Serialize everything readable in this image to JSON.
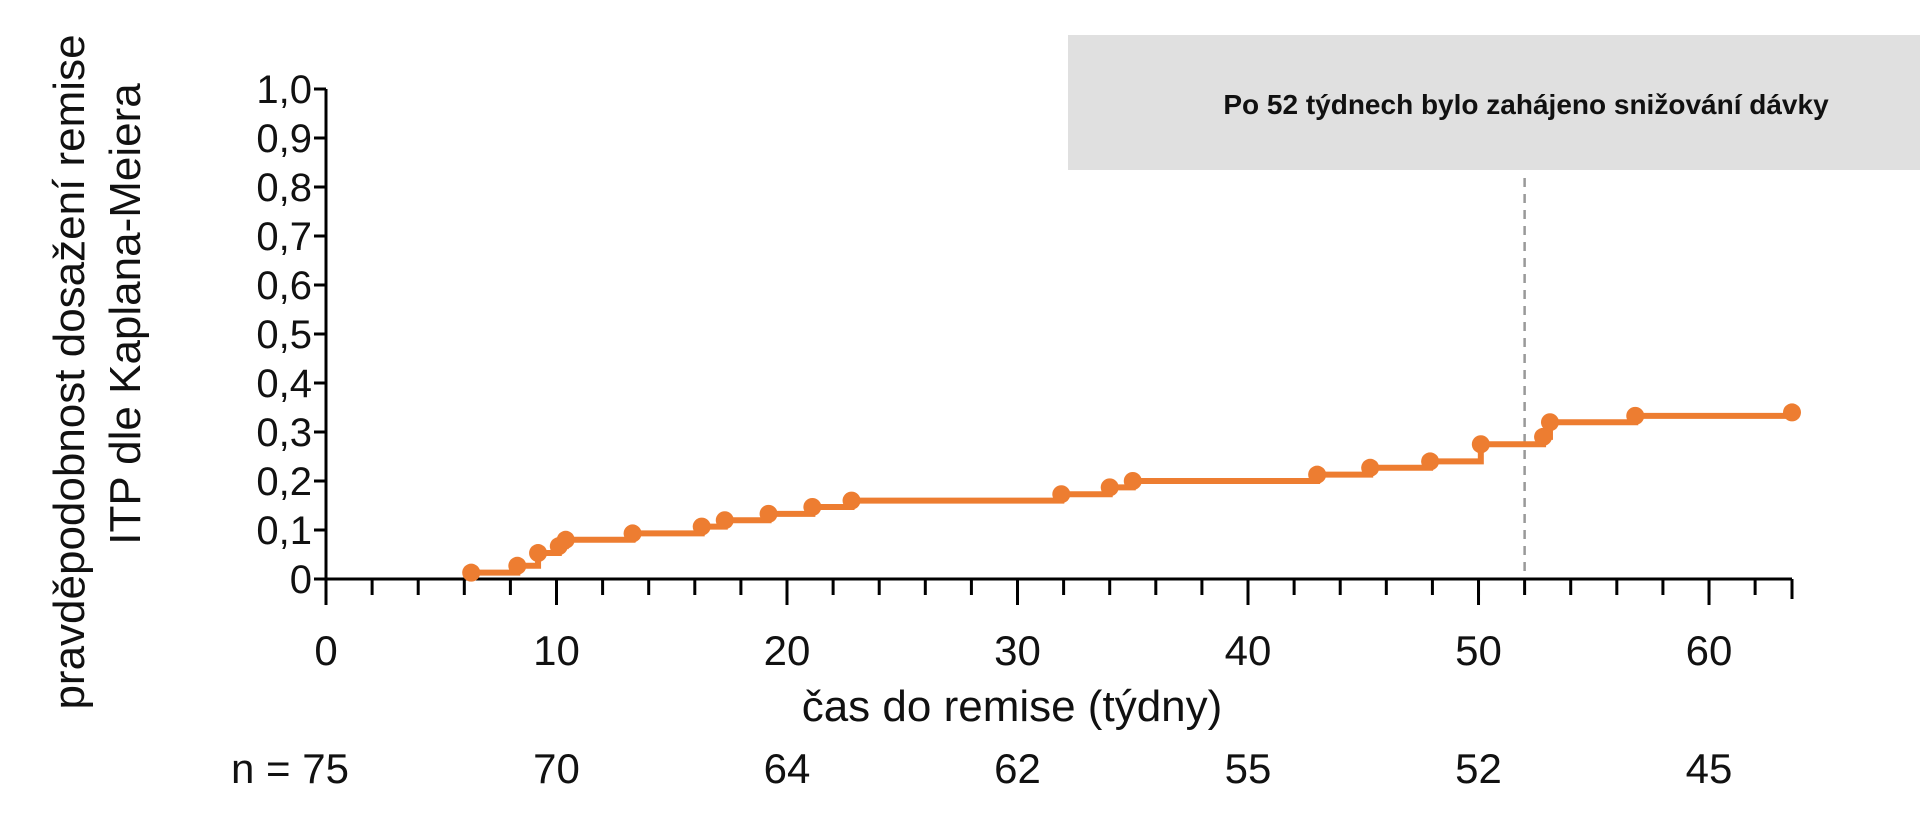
{
  "chart_data": {
    "type": "line",
    "subtype": "kaplan-meier-step",
    "title": "",
    "xlabel": "čas do remise (týdny)",
    "ylabel_lines": [
      "pravděpodobnost dosažení remise",
      "ITP dle Kaplana-Meiera"
    ],
    "xlim": [
      0,
      63.6
    ],
    "ylim": [
      0,
      1.0
    ],
    "x_ticks": [
      0,
      10,
      20,
      30,
      40,
      50,
      60
    ],
    "x_tick_labels": [
      "0",
      "10",
      "20",
      "30",
      "40",
      "50",
      "60"
    ],
    "x_minor_step": 2,
    "y_ticks": [
      0,
      0.1,
      0.2,
      0.3,
      0.4,
      0.5,
      0.6,
      0.7,
      0.8,
      0.9,
      1.0
    ],
    "y_tick_labels": [
      "0",
      "0,1",
      "0,2",
      "0,3",
      "0,4",
      "0,5",
      "0,6",
      "0,7",
      "0,8",
      "0,9",
      "1,0"
    ],
    "grid": false,
    "legend": "none",
    "series": [
      {
        "color": "#ED7D31",
        "points": [
          {
            "x": 6.3,
            "y": 0.013
          },
          {
            "x": 8.3,
            "y": 0.027
          },
          {
            "x": 9.2,
            "y": 0.053
          },
          {
            "x": 10.1,
            "y": 0.067
          },
          {
            "x": 10.4,
            "y": 0.08
          },
          {
            "x": 13.3,
            "y": 0.093
          },
          {
            "x": 16.3,
            "y": 0.107
          },
          {
            "x": 17.3,
            "y": 0.12
          },
          {
            "x": 19.2,
            "y": 0.133
          },
          {
            "x": 21.1,
            "y": 0.147
          },
          {
            "x": 22.8,
            "y": 0.16
          },
          {
            "x": 31.9,
            "y": 0.173
          },
          {
            "x": 34.0,
            "y": 0.187
          },
          {
            "x": 35.0,
            "y": 0.2
          },
          {
            "x": 43.0,
            "y": 0.213
          },
          {
            "x": 45.3,
            "y": 0.227
          },
          {
            "x": 47.9,
            "y": 0.24
          },
          {
            "x": 50.1,
            "y": 0.275
          },
          {
            "x": 52.8,
            "y": 0.29
          },
          {
            "x": 53.1,
            "y": 0.32
          },
          {
            "x": 56.8,
            "y": 0.333
          },
          {
            "x": 63.6,
            "y": 0.34
          }
        ]
      }
    ],
    "reference_line": {
      "x": 52,
      "style": "dashed",
      "color": "#999999"
    },
    "annotation": {
      "text": "Po 52 týdnech bylo zahájeno snižování dávky",
      "background": "#E0E0E0"
    },
    "risk_table": {
      "label_prefix": "n = ",
      "x": [
        0,
        10,
        20,
        30,
        40,
        50,
        60
      ],
      "n": [
        "75",
        "70",
        "64",
        "62",
        "55",
        "52",
        "45"
      ]
    }
  }
}
